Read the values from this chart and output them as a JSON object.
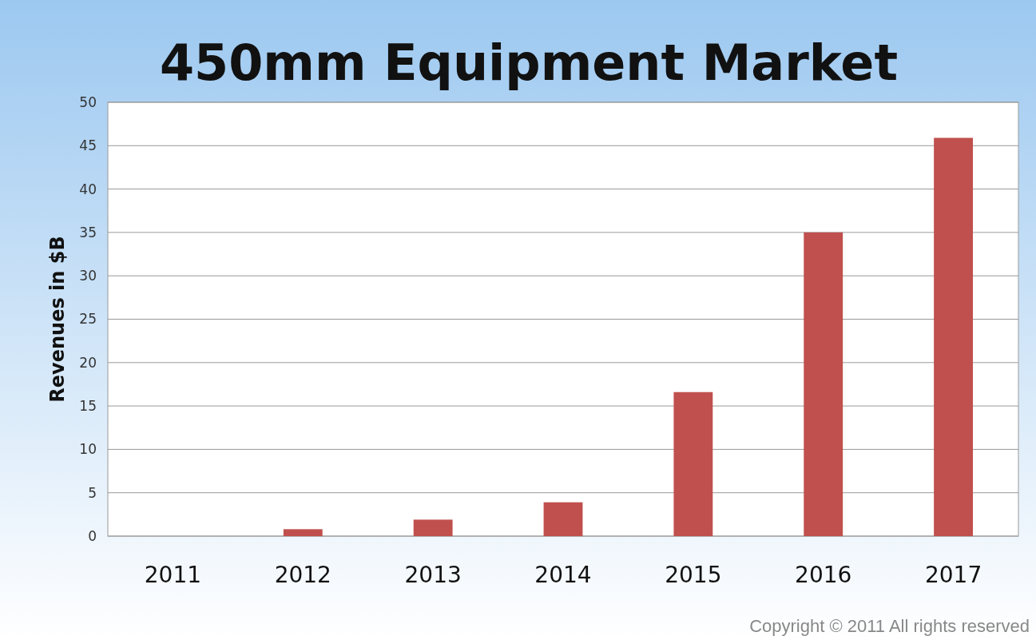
{
  "chart_data": {
    "type": "bar",
    "title": "450mm Equipment Market",
    "ylabel": "Revenues in $B",
    "categories": [
      "2011",
      "2012",
      "2013",
      "2014",
      "2015",
      "2016",
      "2017"
    ],
    "values": [
      0,
      0.8,
      1.9,
      3.9,
      16.6,
      35,
      45.9
    ],
    "color": "#c0504d",
    "ylim": [
      0,
      50
    ],
    "yticks": [
      0,
      5,
      10,
      15,
      20,
      25,
      30,
      35,
      40,
      45,
      50
    ],
    "grid": "y",
    "annotations": [
      "Copyright © 2011 All rights reserved"
    ]
  }
}
